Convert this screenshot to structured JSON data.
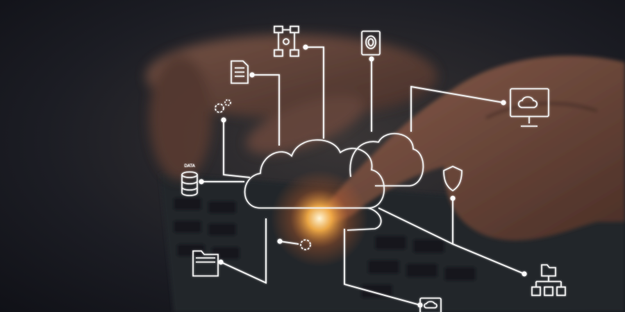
{
  "image": {
    "icon_label": "DATA"
  }
}
